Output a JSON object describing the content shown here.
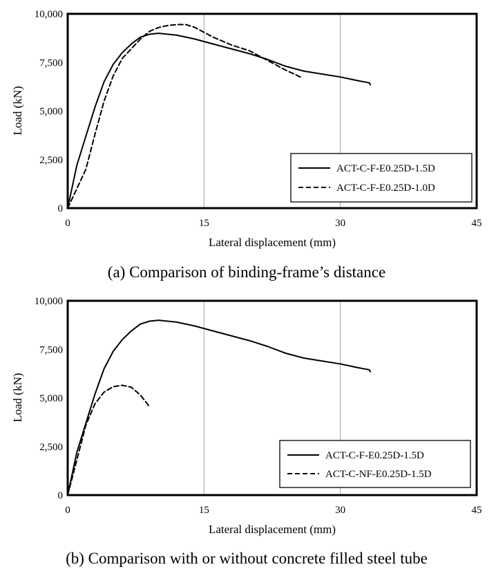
{
  "colors": {
    "line": "#000000",
    "frame": "#000000",
    "background": "#ffffff"
  },
  "chart_data": [
    {
      "type": "line",
      "caption": "(a) Comparison of binding-frame’s distance",
      "xlabel": "Lateral displacement (mm)",
      "ylabel": "Load (kN)",
      "xlim": [
        0,
        45
      ],
      "ylim": [
        0,
        10000
      ],
      "x_ticks": [
        0,
        15,
        30,
        45
      ],
      "x_tick_labels": [
        "0",
        "15",
        "30",
        "45"
      ],
      "y_ticks": [
        0,
        2500,
        5000,
        7500,
        10000
      ],
      "y_tick_labels": [
        "0",
        "2,500",
        "5,000",
        "7,500",
        "10,000"
      ],
      "grid": "x-major",
      "legend_position": "bottom-right",
      "series": [
        {
          "name": "ACT-C-F-E0.25D-1.5D",
          "style": "solid",
          "x": [
            0,
            1,
            2,
            3,
            4,
            5,
            6,
            7,
            8,
            9,
            10,
            12,
            14,
            16,
            18,
            20,
            22,
            24,
            26,
            28,
            30,
            32,
            33.2,
            33.3
          ],
          "y": [
            0,
            2200,
            3700,
            5200,
            6500,
            7400,
            8000,
            8450,
            8800,
            8950,
            9000,
            8900,
            8700,
            8450,
            8200,
            7950,
            7650,
            7300,
            7050,
            6900,
            6750,
            6550,
            6450,
            6350
          ]
        },
        {
          "name": "ACT-C-F-E0.25D-1.0D",
          "style": "dashed",
          "x": [
            0,
            1,
            2,
            3,
            4,
            5,
            6,
            7,
            8,
            9,
            10,
            11,
            12,
            13,
            14,
            15,
            16,
            17,
            18,
            20,
            22,
            24,
            25.6
          ],
          "y": [
            0,
            1000,
            2000,
            3800,
            5500,
            6800,
            7700,
            8200,
            8700,
            9100,
            9300,
            9400,
            9450,
            9450,
            9300,
            9050,
            8800,
            8600,
            8400,
            8100,
            7600,
            7100,
            6750
          ]
        }
      ]
    },
    {
      "type": "line",
      "caption": "(b) Comparison with or without concrete filled steel tube",
      "xlabel": "Lateral displacement (mm)",
      "ylabel": "Load (kN)",
      "xlim": [
        0,
        45
      ],
      "ylim": [
        0,
        10000
      ],
      "x_ticks": [
        0,
        15,
        30,
        45
      ],
      "x_tick_labels": [
        "0",
        "15",
        "30",
        "45"
      ],
      "y_ticks": [
        0,
        2500,
        5000,
        7500,
        10000
      ],
      "y_tick_labels": [
        "0",
        "2,500",
        "5,000",
        "7,500",
        "10,000"
      ],
      "grid": "x-major",
      "legend_position": "bottom-right",
      "series": [
        {
          "name": "ACT-C-F-E0.25D-1.5D",
          "style": "solid",
          "x": [
            0,
            1,
            2,
            3,
            4,
            5,
            6,
            7,
            8,
            9,
            10,
            12,
            14,
            16,
            18,
            20,
            22,
            24,
            26,
            28,
            30,
            32,
            33.2,
            33.3
          ],
          "y": [
            0,
            2200,
            3700,
            5200,
            6500,
            7400,
            8000,
            8450,
            8800,
            8950,
            9000,
            8900,
            8700,
            8450,
            8200,
            7950,
            7650,
            7300,
            7050,
            6900,
            6750,
            6550,
            6450,
            6350
          ]
        },
        {
          "name": "ACT-C-NF-E0.25D-1.5D",
          "style": "dashed",
          "x": [
            0,
            1,
            2,
            3,
            4,
            5,
            6,
            7,
            8,
            9
          ],
          "y": [
            0,
            1800,
            3600,
            4700,
            5300,
            5580,
            5650,
            5550,
            5150,
            4550
          ]
        }
      ]
    }
  ]
}
